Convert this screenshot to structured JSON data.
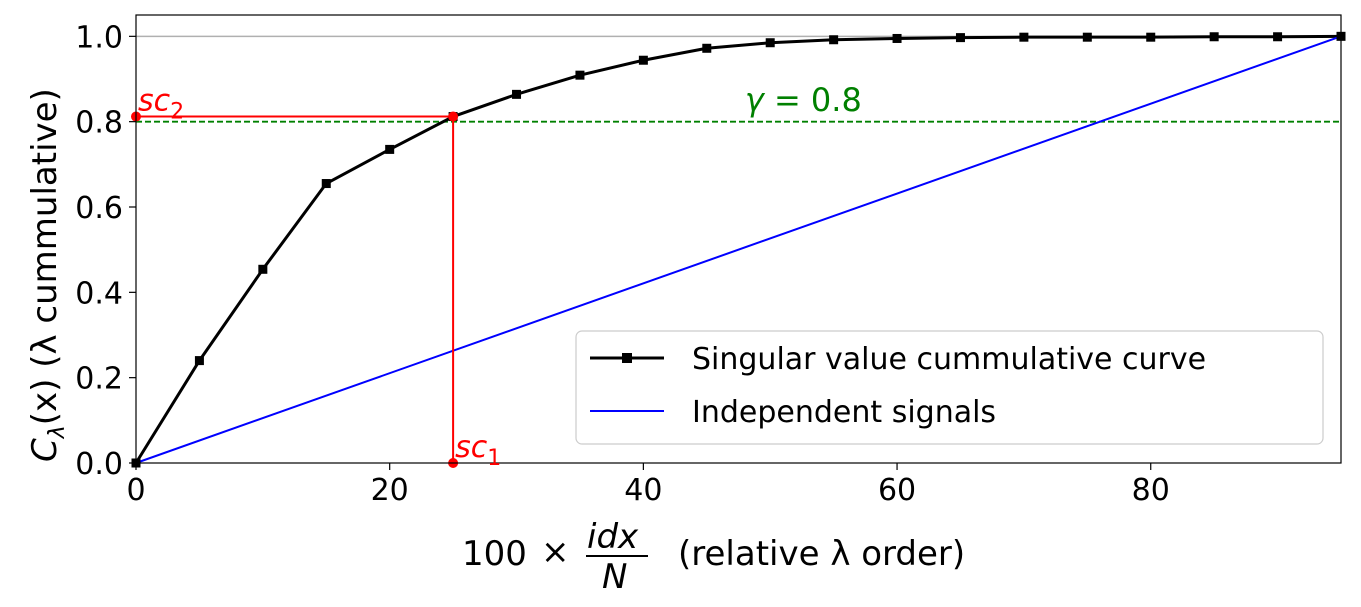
{
  "chart_data": {
    "type": "line",
    "xlabel": {
      "prefix": "100",
      "times": "×",
      "numerator": "idx",
      "denominator": "N",
      "suffix": "(relative λ order)"
    },
    "ylabel": {
      "main": "C",
      "subscript": "λ",
      "arg": "(x) (λ cummulative)"
    },
    "xlim": [
      0,
      95
    ],
    "ylim": [
      0,
      1.05
    ],
    "xticks": [
      "0",
      "20",
      "40",
      "60",
      "80"
    ],
    "xtick_values": [
      0,
      20,
      40,
      60,
      80
    ],
    "yticks": [
      "0.0",
      "0.2",
      "0.4",
      "0.6",
      "0.8",
      "1.0"
    ],
    "ytick_values": [
      0,
      0.2,
      0.4,
      0.6,
      0.8,
      1.0
    ],
    "grid": false,
    "legend_position": "lower-right",
    "series": [
      {
        "name": "Singular value cummulative curve",
        "color": "#000000",
        "marker": "square",
        "x": [
          0,
          5,
          10,
          15,
          20,
          25,
          30,
          35,
          40,
          45,
          50,
          55,
          60,
          65,
          70,
          75,
          80,
          85,
          90,
          95
        ],
        "y": [
          0.0,
          0.24,
          0.454,
          0.655,
          0.735,
          0.812,
          0.864,
          0.909,
          0.944,
          0.972,
          0.985,
          0.992,
          0.995,
          0.997,
          0.998,
          0.998,
          0.998,
          0.999,
          0.999,
          1.0
        ]
      },
      {
        "name": "Independent signals",
        "color": "#0000ff",
        "marker": "none",
        "x": [
          0,
          95
        ],
        "y": [
          0,
          1.0
        ]
      }
    ],
    "reference_lines": [
      {
        "type": "horizontal",
        "y": 1.0,
        "color": "#b0b0b0",
        "style": "solid"
      },
      {
        "type": "horizontal",
        "y": 0.8,
        "color": "#008000",
        "style": "dashed"
      }
    ],
    "threshold_label": {
      "symbol": "γ",
      "text": " = 0.8",
      "color": "#008000",
      "x": 48,
      "y": 0.82
    },
    "intersection": {
      "x": 25,
      "y": 0.812,
      "color": "#ff0000",
      "sc1": {
        "base": "sc",
        "sub": "1"
      },
      "sc2": {
        "base": "sc",
        "sub": "2"
      }
    }
  }
}
